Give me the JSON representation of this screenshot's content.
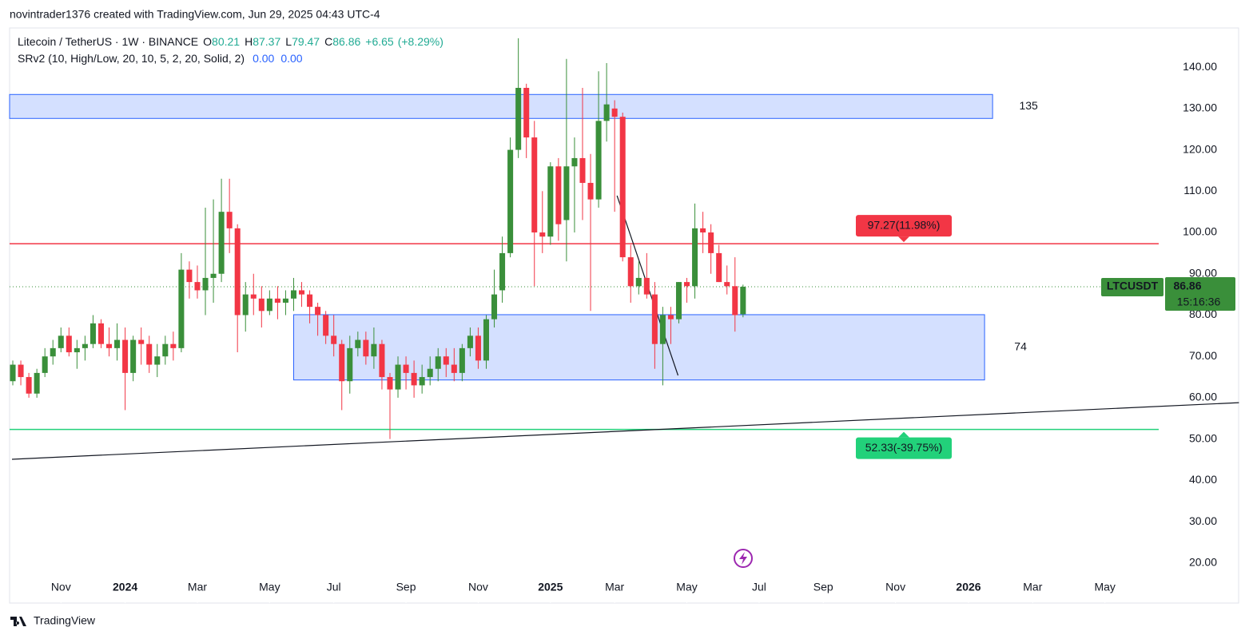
{
  "chart_data": {
    "type": "candlestick",
    "header": "novintrader1376 created with TradingView.com, Jun 29, 2025 04:43 UTC-4",
    "title": "Litecoin / TetherUS · 1W · BINANCE",
    "ohlc_labels": [
      "O",
      "H",
      "L",
      "C"
    ],
    "change": {
      "values": [
        6.65,
        8.29
      ],
      "value_labels": [
        "+6.65",
        "(+8.29%)"
      ]
    },
    "indicator": {
      "name": "SRv2 (10, High/Low, 20, 10, 5, 2, 20, Solid, 2)",
      "values": [
        0,
        0
      ],
      "value_labels": [
        "0.00",
        "0.00"
      ]
    },
    "up_color": "#3a8f3a",
    "down_color": "#f23645",
    "series": {
      "open": [
        64,
        68,
        65,
        61,
        66,
        70,
        72,
        75,
        71,
        72,
        73,
        78,
        73,
        72,
        74,
        66,
        74,
        73,
        68,
        70,
        73,
        72,
        91,
        88,
        86,
        89,
        90,
        105,
        101,
        80,
        85,
        84,
        81,
        84,
        83,
        84,
        86,
        85,
        82,
        80,
        75,
        73,
        64,
        72,
        74,
        70,
        73,
        65,
        62,
        68,
        66,
        63,
        65,
        67,
        70,
        68,
        66,
        72,
        75,
        69,
        79,
        86,
        95,
        120,
        135,
        123,
        100,
        99,
        116,
        103,
        116,
        118,
        112,
        108,
        127,
        130,
        128,
        94,
        87,
        89,
        85,
        73,
        80,
        79,
        88,
        87,
        101,
        100,
        95,
        88,
        87,
        80.21
      ],
      "high": [
        69,
        69,
        66,
        67,
        72,
        74,
        77,
        77,
        74,
        75,
        80,
        79,
        77,
        78,
        77,
        75,
        77,
        75,
        73,
        75,
        76,
        95,
        93,
        92,
        106,
        108,
        113,
        113,
        102,
        88,
        90,
        87,
        86,
        87,
        86,
        89,
        88,
        86,
        83,
        81,
        80,
        74,
        75,
        76,
        76,
        77,
        74,
        66,
        70,
        70,
        69,
        68,
        70,
        72,
        72,
        72,
        73,
        77,
        77,
        80,
        91,
        99,
        123,
        147,
        136,
        127,
        110,
        117,
        118,
        142,
        123,
        135,
        119,
        139,
        141,
        132,
        129,
        97,
        93,
        95,
        88,
        82,
        82,
        88,
        89,
        107,
        105,
        102,
        97,
        92,
        94,
        87.37
      ],
      "low": [
        63,
        63,
        60,
        60,
        65,
        68,
        71,
        70,
        67,
        69,
        72,
        72,
        70,
        69,
        57,
        64,
        68,
        66,
        65,
        68,
        69,
        71,
        84,
        84,
        80,
        83,
        88,
        95,
        71,
        76,
        80,
        77,
        80,
        79,
        80,
        81,
        82,
        78,
        75,
        73,
        70,
        57,
        61,
        70,
        68,
        67,
        62,
        50,
        60,
        62,
        60,
        61,
        63,
        64,
        65,
        64,
        64,
        70,
        67,
        67,
        77,
        83,
        94,
        118,
        118,
        87,
        95,
        97,
        98,
        93,
        100,
        103,
        81,
        106,
        122,
        105,
        93,
        83,
        85,
        84,
        67,
        63,
        73,
        78,
        83,
        84,
        95,
        90,
        88,
        85,
        76,
        79.47
      ],
      "close": [
        68,
        65,
        61,
        66,
        70,
        72,
        75,
        71,
        72,
        73,
        78,
        73,
        72,
        74,
        66,
        74,
        73,
        68,
        70,
        73,
        72,
        91,
        88,
        86,
        89,
        90,
        105,
        101,
        80,
        85,
        84,
        81,
        84,
        83,
        84,
        86,
        85,
        82,
        80,
        75,
        73,
        64,
        72,
        74,
        70,
        73,
        65,
        62,
        68,
        66,
        63,
        65,
        67,
        70,
        68,
        66,
        72,
        75,
        69,
        79,
        85,
        95,
        120,
        135,
        123,
        100,
        99,
        116,
        102,
        116,
        118,
        112,
        108,
        127,
        131,
        128,
        94,
        87,
        89,
        85,
        73,
        80,
        79,
        88,
        87,
        101,
        100,
        95,
        88,
        87,
        80,
        86.86
      ]
    },
    "xlim": [
      -0.4,
      142.8
    ],
    "xticks": [
      {
        "value": 6,
        "label": "Nov"
      },
      {
        "value": 14,
        "label": "2024"
      },
      {
        "value": 23,
        "label": "Mar"
      },
      {
        "value": 32,
        "label": "May"
      },
      {
        "value": 40,
        "label": "Jul"
      },
      {
        "value": 49,
        "label": "Sep"
      },
      {
        "value": 58,
        "label": "Nov"
      },
      {
        "value": 67,
        "label": "2025"
      },
      {
        "value": 75,
        "label": "Mar"
      },
      {
        "value": 84,
        "label": "May"
      },
      {
        "value": 93,
        "label": "Jul"
      },
      {
        "value": 101,
        "label": "Sep"
      },
      {
        "value": 110,
        "label": "Nov"
      },
      {
        "value": 119.1,
        "label": "2026"
      },
      {
        "value": 127.1,
        "label": "Mar"
      },
      {
        "value": 136.1,
        "label": "May"
      }
    ],
    "ylim": [
      10.3,
      149.5
    ],
    "yticks": [
      {
        "value": 20,
        "label": "20.00"
      },
      {
        "value": 30,
        "label": "30.00"
      },
      {
        "value": 40,
        "label": "40.00"
      },
      {
        "value": 50,
        "label": "50.00"
      },
      {
        "value": 60,
        "label": "60.00"
      },
      {
        "value": 70,
        "label": "70.00"
      },
      {
        "value": 80,
        "label": "80.00"
      },
      {
        "value": 90,
        "label": "90.00"
      },
      {
        "value": 100,
        "label": "100.00"
      },
      {
        "value": 110,
        "label": "110.00"
      },
      {
        "value": 120,
        "label": "120.00"
      },
      {
        "value": 130,
        "label": "130.00"
      },
      {
        "value": 140,
        "label": "140.00"
      }
    ],
    "zones": [
      {
        "label": "135",
        "x": [
          -0.4,
          122.1
        ],
        "y": [
          127.6,
          133.4
        ]
      },
      {
        "label": "74",
        "x": [
          35,
          121.1
        ],
        "y": [
          64.3,
          80.1
        ]
      }
    ],
    "levels": [
      {
        "value": 97.27,
        "label": "97.27(11.98%)",
        "color": "#f23645"
      },
      {
        "value": 52.33,
        "label": "52.33(-39.75%)",
        "color": "#22d17a"
      }
    ],
    "trendlines": [
      {
        "x": [
          -0.1,
          152.8
        ],
        "y": [
          45.1,
          58.8
        ]
      },
      {
        "x": [
          75.3,
          82.9
        ],
        "y": [
          108.9,
          65.4
        ]
      }
    ],
    "symbol": "LTCUSDT",
    "countdown": "15:16:36",
    "footer": "TradingView"
  }
}
